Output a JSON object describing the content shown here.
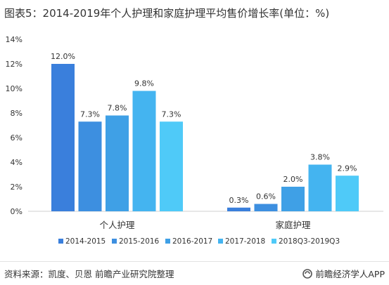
{
  "title": "图表5：2014-2019年个人护理和家庭护理平均售价增长率(单位：%)",
  "source": "资料来源：凯度、贝恩 前瞻产业研究院整理",
  "brand": "前瞻经济学人APP",
  "brand_icon": "qianzhan-logo-icon",
  "chart_data": {
    "type": "bar",
    "title": "图表5：2014-2019年个人护理和家庭护理平均售价增长率(单位：%)",
    "categories": [
      "个人护理",
      "家庭护理"
    ],
    "series": [
      {
        "name": "2014-2015",
        "values": [
          12.0,
          0.3
        ],
        "color": "#3a7fdc"
      },
      {
        "name": "2015-2016",
        "values": [
          7.3,
          0.6
        ],
        "color": "#3d8fe0"
      },
      {
        "name": "2016-2017",
        "values": [
          7.8,
          2.0
        ],
        "color": "#3fa0e6"
      },
      {
        "name": "2017-2018",
        "values": [
          9.8,
          3.8
        ],
        "color": "#44b4f0"
      },
      {
        "name": "2018Q3-2019Q3",
        "values": [
          7.3,
          2.9
        ],
        "color": "#4fcaf8"
      }
    ],
    "data_labels": [
      [
        "12.0%",
        "7.3%",
        "7.8%",
        "9.8%",
        "7.3%"
      ],
      [
        "0.3%",
        "0.6%",
        "2.0%",
        "3.8%",
        "2.9%"
      ]
    ],
    "yticks": [
      "0%",
      "2%",
      "4%",
      "6%",
      "8%",
      "10%",
      "12%",
      "14%"
    ],
    "ylim": [
      0,
      14
    ],
    "grid": false,
    "legend_position": "bottom"
  }
}
